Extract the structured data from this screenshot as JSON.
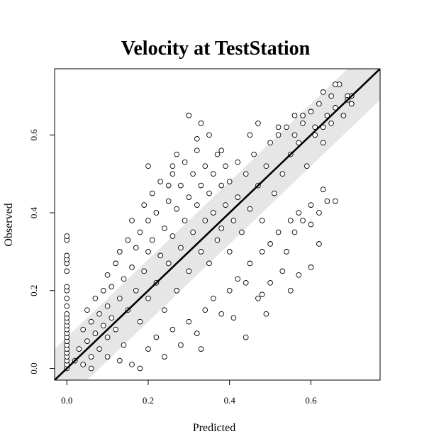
{
  "chart_data": {
    "type": "scatter",
    "title": "Velocity at TestStation",
    "xlabel": "Predicted",
    "ylabel": "Observed",
    "xlim": [
      -0.03,
      0.77
    ],
    "ylim": [
      -0.03,
      0.77
    ],
    "x_ticks": [
      0.0,
      0.2,
      0.4,
      0.6
    ],
    "y_ticks": [
      0.0,
      0.2,
      0.4,
      0.6
    ],
    "x_tick_labels": [
      "0.0",
      "0.2",
      "0.4",
      "0.6"
    ],
    "y_tick_labels": [
      "0.0",
      "0.2",
      "0.4",
      "0.6"
    ],
    "grid": false,
    "fit_line": {
      "slope": 1.0,
      "intercept": 0.0
    },
    "band_halfwidth": 0.08,
    "band_color": "#e6e6e6",
    "series": [
      {
        "points": [
          [
            0.0,
            0.0
          ],
          [
            0.0,
            0.01
          ],
          [
            0.0,
            0.02
          ],
          [
            0.0,
            0.03
          ],
          [
            0.0,
            0.04
          ],
          [
            0.0,
            0.05
          ],
          [
            0.0,
            0.06
          ],
          [
            0.0,
            0.07
          ],
          [
            0.0,
            0.08
          ],
          [
            0.0,
            0.09
          ],
          [
            0.0,
            0.1
          ],
          [
            0.0,
            0.11
          ],
          [
            0.0,
            0.12
          ],
          [
            0.0,
            0.13
          ],
          [
            0.0,
            0.14
          ],
          [
            0.0,
            0.16
          ],
          [
            0.0,
            0.18
          ],
          [
            0.0,
            0.2
          ],
          [
            0.0,
            0.21
          ],
          [
            0.0,
            0.25
          ],
          [
            0.0,
            0.27
          ],
          [
            0.0,
            0.28
          ],
          [
            0.0,
            0.29
          ],
          [
            0.0,
            0.33
          ],
          [
            0.0,
            0.34
          ],
          [
            0.02,
            0.02
          ],
          [
            0.03,
            0.05
          ],
          [
            0.04,
            0.01
          ],
          [
            0.04,
            0.1
          ],
          [
            0.05,
            0.07
          ],
          [
            0.05,
            0.15
          ],
          [
            0.06,
            0.03
          ],
          [
            0.06,
            0.12
          ],
          [
            0.07,
            0.09
          ],
          [
            0.07,
            0.18
          ],
          [
            0.08,
            0.05
          ],
          [
            0.08,
            0.14
          ],
          [
            0.09,
            0.11
          ],
          [
            0.09,
            0.2
          ],
          [
            0.1,
            0.08
          ],
          [
            0.1,
            0.16
          ],
          [
            0.1,
            0.24
          ],
          [
            0.11,
            0.13
          ],
          [
            0.11,
            0.21
          ],
          [
            0.12,
            0.1
          ],
          [
            0.12,
            0.27
          ],
          [
            0.13,
            0.18
          ],
          [
            0.13,
            0.3
          ],
          [
            0.14,
            0.06
          ],
          [
            0.14,
            0.23
          ],
          [
            0.15,
            0.33
          ],
          [
            0.15,
            0.15
          ],
          [
            0.16,
            0.26
          ],
          [
            0.16,
            0.38
          ],
          [
            0.17,
            0.2
          ],
          [
            0.17,
            0.31
          ],
          [
            0.18,
            0.12
          ],
          [
            0.18,
            0.35
          ],
          [
            0.19,
            0.42
          ],
          [
            0.19,
            0.25
          ],
          [
            0.2,
            0.3
          ],
          [
            0.2,
            0.38
          ],
          [
            0.2,
            0.18
          ],
          [
            0.21,
            0.45
          ],
          [
            0.21,
            0.33
          ],
          [
            0.22,
            0.22
          ],
          [
            0.22,
            0.4
          ],
          [
            0.23,
            0.29
          ],
          [
            0.23,
            0.48
          ],
          [
            0.24,
            0.36
          ],
          [
            0.24,
            0.15
          ],
          [
            0.25,
            0.43
          ],
          [
            0.25,
            0.27
          ],
          [
            0.26,
            0.5
          ],
          [
            0.26,
            0.34
          ],
          [
            0.27,
            0.2
          ],
          [
            0.27,
            0.41
          ],
          [
            0.28,
            0.47
          ],
          [
            0.28,
            0.31
          ],
          [
            0.29,
            0.53
          ],
          [
            0.29,
            0.38
          ],
          [
            0.3,
            0.25
          ],
          [
            0.3,
            0.44
          ],
          [
            0.31,
            0.5
          ],
          [
            0.31,
            0.35
          ],
          [
            0.32,
            0.56
          ],
          [
            0.32,
            0.42
          ],
          [
            0.33,
            0.3
          ],
          [
            0.33,
            0.47
          ],
          [
            0.34,
            0.52
          ],
          [
            0.34,
            0.38
          ],
          [
            0.35,
            0.45
          ],
          [
            0.35,
            0.27
          ],
          [
            0.36,
            0.5
          ],
          [
            0.36,
            0.4
          ],
          [
            0.37,
            0.33
          ],
          [
            0.37,
            0.55
          ],
          [
            0.38,
            0.47
          ],
          [
            0.38,
            0.36
          ],
          [
            0.39,
            0.52
          ],
          [
            0.39,
            0.42
          ],
          [
            0.4,
            0.3
          ],
          [
            0.4,
            0.48
          ],
          [
            0.41,
            0.38
          ],
          [
            0.42,
            0.53
          ],
          [
            0.42,
            0.44
          ],
          [
            0.43,
            0.35
          ],
          [
            0.44,
            0.5
          ],
          [
            0.45,
            0.41
          ],
          [
            0.46,
            0.55
          ],
          [
            0.47,
            0.47
          ],
          [
            0.48,
            0.38
          ],
          [
            0.49,
            0.52
          ],
          [
            0.5,
            0.58
          ],
          [
            0.51,
            0.45
          ],
          [
            0.52,
            0.6
          ],
          [
            0.53,
            0.5
          ],
          [
            0.54,
            0.62
          ],
          [
            0.55,
            0.55
          ],
          [
            0.56,
            0.65
          ],
          [
            0.57,
            0.58
          ],
          [
            0.58,
            0.63
          ],
          [
            0.59,
            0.52
          ],
          [
            0.6,
            0.66
          ],
          [
            0.61,
            0.6
          ],
          [
            0.62,
            0.68
          ],
          [
            0.63,
            0.62
          ],
          [
            0.64,
            0.65
          ],
          [
            0.65,
            0.7
          ],
          [
            0.66,
            0.67
          ],
          [
            0.67,
            0.73
          ],
          [
            0.68,
            0.65
          ],
          [
            0.69,
            0.7
          ],
          [
            0.7,
            0.68
          ],
          [
            0.3,
            0.65
          ],
          [
            0.33,
            0.63
          ],
          [
            0.35,
            0.6
          ],
          [
            0.32,
            0.59
          ],
          [
            0.27,
            0.55
          ],
          [
            0.26,
            0.52
          ],
          [
            0.2,
            0.52
          ],
          [
            0.38,
            0.56
          ],
          [
            0.25,
            0.47
          ],
          [
            0.45,
            0.6
          ],
          [
            0.47,
            0.63
          ],
          [
            0.52,
            0.62
          ],
          [
            0.56,
            0.6
          ],
          [
            0.58,
            0.65
          ],
          [
            0.61,
            0.62
          ],
          [
            0.63,
            0.58
          ],
          [
            0.65,
            0.63
          ],
          [
            0.63,
            0.71
          ],
          [
            0.66,
            0.73
          ],
          [
            0.69,
            0.69
          ],
          [
            0.7,
            0.7
          ],
          [
            0.06,
            0.0
          ],
          [
            0.1,
            0.03
          ],
          [
            0.13,
            0.02
          ],
          [
            0.16,
            0.01
          ],
          [
            0.18,
            0.0
          ],
          [
            0.2,
            0.05
          ],
          [
            0.22,
            0.08
          ],
          [
            0.24,
            0.03
          ],
          [
            0.26,
            0.1
          ],
          [
            0.28,
            0.06
          ],
          [
            0.3,
            0.12
          ],
          [
            0.32,
            0.09
          ],
          [
            0.34,
            0.15
          ],
          [
            0.33,
            0.05
          ],
          [
            0.36,
            0.18
          ],
          [
            0.38,
            0.14
          ],
          [
            0.4,
            0.2
          ],
          [
            0.42,
            0.23
          ],
          [
            0.44,
            0.08
          ],
          [
            0.45,
            0.27
          ],
          [
            0.48,
            0.3
          ],
          [
            0.5,
            0.32
          ],
          [
            0.52,
            0.35
          ],
          [
            0.55,
            0.38
          ],
          [
            0.57,
            0.4
          ],
          [
            0.6,
            0.42
          ],
          [
            0.62,
            0.4
          ],
          [
            0.64,
            0.43
          ],
          [
            0.66,
            0.43
          ],
          [
            0.63,
            0.46
          ],
          [
            0.48,
            0.19
          ],
          [
            0.5,
            0.22
          ],
          [
            0.53,
            0.25
          ],
          [
            0.55,
            0.2
          ],
          [
            0.57,
            0.24
          ],
          [
            0.6,
            0.26
          ],
          [
            0.62,
            0.32
          ],
          [
            0.54,
            0.3
          ],
          [
            0.56,
            0.35
          ],
          [
            0.58,
            0.38
          ],
          [
            0.6,
            0.37
          ],
          [
            0.49,
            0.14
          ],
          [
            0.47,
            0.18
          ],
          [
            0.41,
            0.13
          ],
          [
            0.44,
            0.22
          ]
        ]
      }
    ]
  }
}
